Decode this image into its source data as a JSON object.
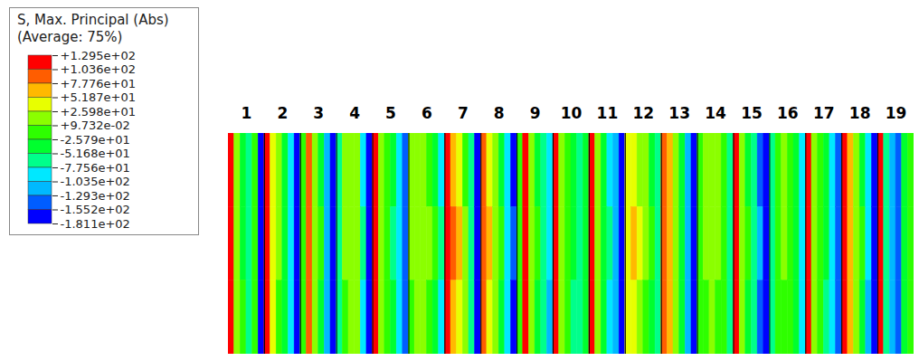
{
  "chart_data": {
    "type": "heatmap",
    "categories": [
      "1",
      "2",
      "3",
      "4",
      "5",
      "6",
      "7",
      "8",
      "9",
      "10",
      "11",
      "12",
      "13",
      "14",
      "15",
      "16",
      "17",
      "18",
      "19"
    ],
    "cells": [
      [
        [
          125,
          10,
          -35,
          -60,
          -15,
          -160
        ],
        [
          125,
          15,
          -30,
          -65,
          -10,
          -165
        ],
        [
          120,
          15,
          -25,
          -55,
          -20,
          -160
        ]
      ],
      [
        [
          115,
          40,
          5,
          -40,
          -90,
          -170
        ],
        [
          110,
          45,
          10,
          -35,
          -85,
          -170
        ],
        [
          115,
          35,
          0,
          -45,
          -95,
          -165
        ]
      ],
      [
        [
          -20,
          90,
          20,
          -30,
          -110,
          -175
        ],
        [
          -15,
          95,
          25,
          -25,
          -105,
          -175
        ],
        [
          -20,
          85,
          15,
          -35,
          -115,
          -170
        ]
      ],
      [
        [
          -60,
          5,
          20,
          10,
          -80,
          -170
        ],
        [
          -55,
          10,
          25,
          5,
          -75,
          -165
        ],
        [
          -65,
          0,
          15,
          10,
          -85,
          -170
        ]
      ],
      [
        [
          110,
          10,
          -15,
          -50,
          -90,
          -140
        ],
        [
          115,
          5,
          -20,
          -55,
          -95,
          -145
        ],
        [
          110,
          15,
          -10,
          -45,
          -85,
          -135
        ]
      ],
      [
        [
          5,
          15,
          10,
          0,
          -30,
          -80
        ],
        [
          10,
          20,
          15,
          5,
          -25,
          -75
        ],
        [
          0,
          10,
          5,
          -5,
          -35,
          -85
        ]
      ],
      [
        [
          125,
          70,
          40,
          0,
          -70,
          -170
        ],
        [
          120,
          85,
          55,
          10,
          -60,
          -165
        ],
        [
          125,
          75,
          45,
          5,
          -75,
          -170
        ]
      ],
      [
        [
          80,
          50,
          10,
          -30,
          -90,
          -160
        ],
        [
          85,
          55,
          15,
          -25,
          -85,
          -155
        ],
        [
          90,
          45,
          5,
          -35,
          -95,
          -160
        ]
      ],
      [
        [
          -20,
          125,
          10,
          -30,
          -60,
          -100
        ],
        [
          -15,
          120,
          15,
          -25,
          -55,
          -95
        ],
        [
          -20,
          125,
          5,
          -35,
          -65,
          -105
        ]
      ],
      [
        [
          110,
          20,
          -10,
          -50,
          -70,
          -40
        ],
        [
          115,
          25,
          -5,
          -45,
          -65,
          -35
        ],
        [
          110,
          15,
          -15,
          -55,
          -75,
          -45
        ]
      ],
      [
        [
          120,
          10,
          -40,
          -80,
          -120,
          -170
        ],
        [
          125,
          15,
          -35,
          -75,
          -115,
          -165
        ],
        [
          120,
          5,
          -45,
          -85,
          -125,
          -170
        ]
      ],
      [
        [
          30,
          40,
          20,
          5,
          -30,
          -60
        ],
        [
          45,
          60,
          30,
          10,
          -25,
          -55
        ],
        [
          35,
          45,
          25,
          0,
          -35,
          -65
        ]
      ],
      [
        [
          90,
          60,
          20,
          -40,
          -120,
          -175
        ],
        [
          95,
          70,
          25,
          -35,
          -115,
          -175
        ],
        [
          85,
          55,
          15,
          -45,
          -125,
          -170
        ]
      ],
      [
        [
          -10,
          5,
          15,
          5,
          -20,
          -60
        ],
        [
          -5,
          10,
          20,
          10,
          -15,
          -55
        ],
        [
          -15,
          0,
          10,
          0,
          -25,
          -65
        ]
      ],
      [
        [
          120,
          15,
          -30,
          -70,
          -130,
          -175
        ],
        [
          125,
          20,
          -25,
          -65,
          -125,
          -170
        ],
        [
          120,
          10,
          -35,
          -75,
          -135,
          -175
        ]
      ],
      [
        [
          -60,
          -20,
          5,
          -10,
          -40,
          -90
        ],
        [
          -55,
          -15,
          10,
          -5,
          -35,
          -85
        ],
        [
          -65,
          -25,
          0,
          -15,
          -45,
          -95
        ]
      ],
      [
        [
          120,
          20,
          -20,
          -50,
          -90,
          -140
        ],
        [
          125,
          25,
          -15,
          -45,
          -85,
          -135
        ],
        [
          120,
          15,
          -25,
          -55,
          -95,
          -145
        ]
      ],
      [
        [
          125,
          60,
          20,
          -30,
          -100,
          -170
        ],
        [
          120,
          65,
          25,
          -25,
          -95,
          -165
        ],
        [
          125,
          55,
          15,
          -35,
          -105,
          -170
        ]
      ],
      [
        [
          110,
          -60,
          -110,
          -150,
          -40,
          -20
        ],
        [
          115,
          -55,
          -105,
          -145,
          -35,
          -15
        ],
        [
          110,
          -65,
          -115,
          -155,
          -45,
          -25
        ]
      ]
    ],
    "colorbar": {
      "title": "S, Max. Principal (Abs)",
      "subtitle": "(Average: 75%)",
      "range": [
        -181.1,
        129.5
      ],
      "ticks": [
        {
          "value": 129.5,
          "label": "+1.295e+02"
        },
        {
          "value": 103.6,
          "label": "+1.036e+02"
        },
        {
          "value": 77.76,
          "label": "+7.776e+01"
        },
        {
          "value": 51.87,
          "label": "+5.187e+01"
        },
        {
          "value": 25.98,
          "label": "+2.598e+01"
        },
        {
          "value": 0.09732,
          "label": "+9.732e-02"
        },
        {
          "value": -25.79,
          "label": "-2.579e+01"
        },
        {
          "value": -51.68,
          "label": "-5.168e+01"
        },
        {
          "value": -77.56,
          "label": "-7.756e+01"
        },
        {
          "value": -103.5,
          "label": "-1.035e+02"
        },
        {
          "value": -129.3,
          "label": "-1.293e+02"
        },
        {
          "value": -155.2,
          "label": "-1.552e+02"
        },
        {
          "value": -181.1,
          "label": "-1.811e+02"
        }
      ],
      "colors": [
        "#ff0000",
        "#ff5d00",
        "#ffb900",
        "#e8ff00",
        "#8bff00",
        "#2eff00",
        "#00ff2e",
        "#00ff8b",
        "#00e8ff",
        "#00b9ff",
        "#005dff",
        "#0000ff"
      ]
    }
  }
}
